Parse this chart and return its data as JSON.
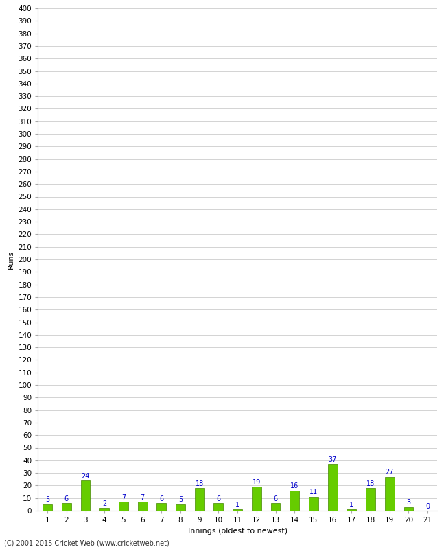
{
  "title": "",
  "xlabel": "Innings (oldest to newest)",
  "ylabel": "Runs",
  "categories": [
    1,
    2,
    3,
    4,
    5,
    6,
    7,
    8,
    9,
    10,
    11,
    12,
    13,
    14,
    15,
    16,
    17,
    18,
    19,
    20,
    21
  ],
  "values": [
    5,
    6,
    24,
    2,
    7,
    7,
    6,
    5,
    18,
    6,
    1,
    19,
    6,
    16,
    11,
    37,
    1,
    18,
    27,
    3,
    0
  ],
  "bar_color": "#66cc00",
  "bar_edge_color": "#448800",
  "label_color": "#0000cc",
  "ylim": [
    0,
    400
  ],
  "ytick_step": 10,
  "background_color": "#ffffff",
  "grid_color": "#cccccc",
  "footer_text": "(C) 2001-2015 Cricket Web (www.cricketweb.net)",
  "axis_label_fontsize": 8,
  "tick_fontsize": 7.5,
  "annotation_fontsize": 7,
  "bar_width": 0.5
}
